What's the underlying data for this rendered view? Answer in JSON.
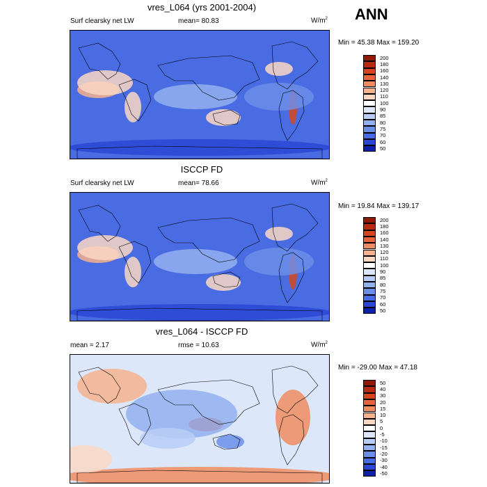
{
  "season_label": "ANN",
  "units": "W/m",
  "units_sup": "2",
  "panels": [
    {
      "title": "vres_L064 (yrs 2001-2004)",
      "left_label": "Surf clearsky net LW",
      "center_label": "mean=  80.83",
      "minmax": "Min =  45.38 Max = 159.20",
      "palette": "abs",
      "levels": [
        "200",
        "180",
        "160",
        "140",
        "130",
        "120",
        "110",
        "100",
        "90",
        "85",
        "80",
        "75",
        "70",
        "60",
        "50"
      ]
    },
    {
      "title": "ISCCP FD",
      "left_label": "Surf clearsky net LW",
      "center_label": "mean=  78.66",
      "minmax": "Min =  19.84 Max = 139.17",
      "palette": "abs",
      "levels": [
        "200",
        "180",
        "160",
        "140",
        "130",
        "120",
        "110",
        "100",
        "90",
        "85",
        "80",
        "75",
        "70",
        "60",
        "50"
      ]
    },
    {
      "title": "vres_L064 - ISCCP FD",
      "left_label": "mean =   2.17",
      "center_label": "rmse =  10.63",
      "minmax": "Min = -29.00 Max =  47.18",
      "palette": "diff",
      "levels": [
        "50",
        "40",
        "30",
        "20",
        "15",
        "10",
        "5",
        "0",
        "-5",
        "-10",
        "-15",
        "-20",
        "-30",
        "-40",
        "-50"
      ]
    }
  ],
  "chart_data": [
    {
      "type": "heatmap",
      "title": "vres_L064 (yrs 2001-2004)",
      "variable": "Surf clearsky net LW",
      "mean": 80.83,
      "min": 45.38,
      "max": 159.2,
      "units": "W/m2",
      "contour_levels": [
        50,
        60,
        70,
        75,
        80,
        85,
        90,
        100,
        110,
        120,
        130,
        140,
        160,
        180,
        200
      ]
    },
    {
      "type": "heatmap",
      "title": "ISCCP FD",
      "variable": "Surf clearsky net LW",
      "mean": 78.66,
      "min": 19.84,
      "max": 139.17,
      "units": "W/m2",
      "contour_levels": [
        50,
        60,
        70,
        75,
        80,
        85,
        90,
        100,
        110,
        120,
        130,
        140,
        160,
        180,
        200
      ]
    },
    {
      "type": "heatmap",
      "title": "vres_L064 - ISCCP FD",
      "mean": 2.17,
      "rmse": 10.63,
      "min": -29.0,
      "max": 47.18,
      "units": "W/m2",
      "contour_levels": [
        -50,
        -40,
        -30,
        -20,
        -15,
        -10,
        -5,
        0,
        5,
        10,
        15,
        20,
        30,
        40,
        50
      ]
    }
  ],
  "colors": {
    "abs": [
      "#8f1806",
      "#b62b0f",
      "#d5461f",
      "#e6643b",
      "#f08c62",
      "#f6b18d",
      "#fad7c3",
      "#ffffff",
      "#dde7fa",
      "#b9cdf4",
      "#93b0ef",
      "#6b8ee9",
      "#4a6ce2",
      "#2a46d3",
      "#0f20a8"
    ],
    "diff": [
      "#8f1806",
      "#b62b0f",
      "#d5461f",
      "#e6643b",
      "#f08c62",
      "#f6b18d",
      "#fad7c3",
      "#ffffff",
      "#dde7fa",
      "#b9cdf4",
      "#93b0ef",
      "#6b8ee9",
      "#4a6ce2",
      "#2a46d3",
      "#0f20a8"
    ]
  }
}
